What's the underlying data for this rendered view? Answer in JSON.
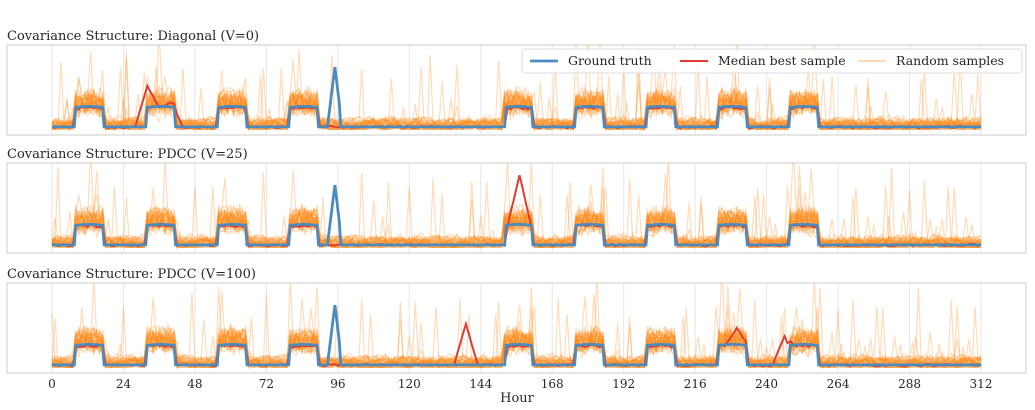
{
  "chart_data": {
    "type": "line",
    "x_unit": "Hour",
    "xlabel": "Hour",
    "x_ticks": [
      0,
      24,
      48,
      72,
      96,
      120,
      144,
      168,
      192,
      216,
      240,
      264,
      288,
      312
    ],
    "xlim": [
      0,
      312
    ],
    "grid": "vertical",
    "legend": {
      "placement": "top-right of first panel",
      "entries": [
        "Ground truth",
        "Median best sample",
        "Random samples"
      ]
    },
    "colors": {
      "ground_truth": "#4b8bbe",
      "median_best": "#e03c31",
      "random": "#ff8c1a"
    },
    "series_style": {
      "random_samples_count_per_panel": 30,
      "random_samples_opacity": 0.3
    },
    "panels": [
      {
        "title": "Covariance Structure: Diagonal (V=0)",
        "ground_truth_spike": {
          "x": 95,
          "y": 0.78
        },
        "median_best_deviations": [
          {
            "x": 32,
            "y": 0.55
          },
          {
            "x": 40,
            "y": 0.35
          }
        ]
      },
      {
        "title": "Covariance Structure: PDCC (V=25)",
        "ground_truth_spike": {
          "x": 95,
          "y": 0.78
        },
        "median_best_deviations": [
          {
            "x": 157,
            "y": 0.9
          }
        ]
      },
      {
        "title": "Covariance Structure: PDCC (V=100)",
        "ground_truth_spike": {
          "x": 95,
          "y": 0.78
        },
        "median_best_deviations": [
          {
            "x": 139,
            "y": 0.55
          },
          {
            "x": 230,
            "y": 0.5
          },
          {
            "x": 246,
            "y": 0.4
          }
        ]
      }
    ],
    "daily_pattern": {
      "period_hours": 24,
      "active_hours": [
        8,
        17
      ],
      "weekday_peak": 0.3,
      "baseline": 0.05,
      "ground_truth_flat_range": [
        97,
        152
      ]
    }
  }
}
